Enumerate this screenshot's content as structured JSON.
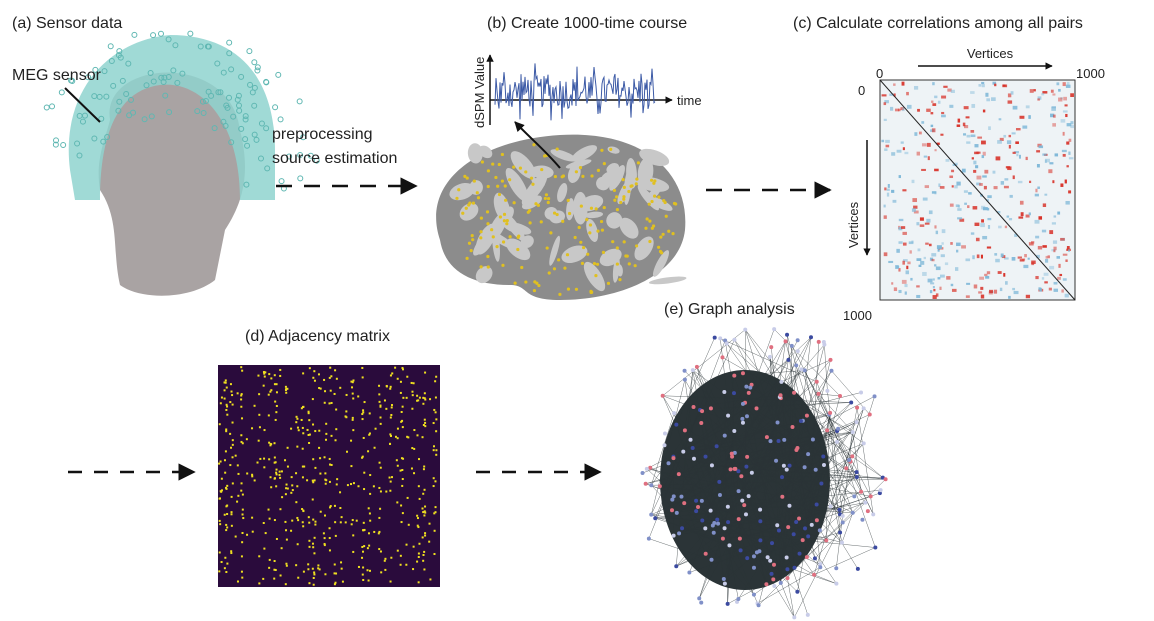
{
  "panel_a": {
    "title": "(a) Sensor data",
    "sensor_label": "MEG sensor"
  },
  "step_label": [
    "preprocessing",
    "source estimation"
  ],
  "panel_b": {
    "title": "(b) Create 1000-time course",
    "y_label": "dSPM Value",
    "x_label": "time"
  },
  "panel_c": {
    "title": "(c) Calculate correlations among all pairs",
    "top_axis_label": "Vertices",
    "left_axis_label": "Vertices",
    "top_start": "0",
    "top_end": "1000",
    "left_start": "0",
    "left_end": "1000"
  },
  "panel_d": {
    "title": "(d) Adjacency matrix"
  },
  "panel_e": {
    "title": "(e) Graph analysis"
  }
}
